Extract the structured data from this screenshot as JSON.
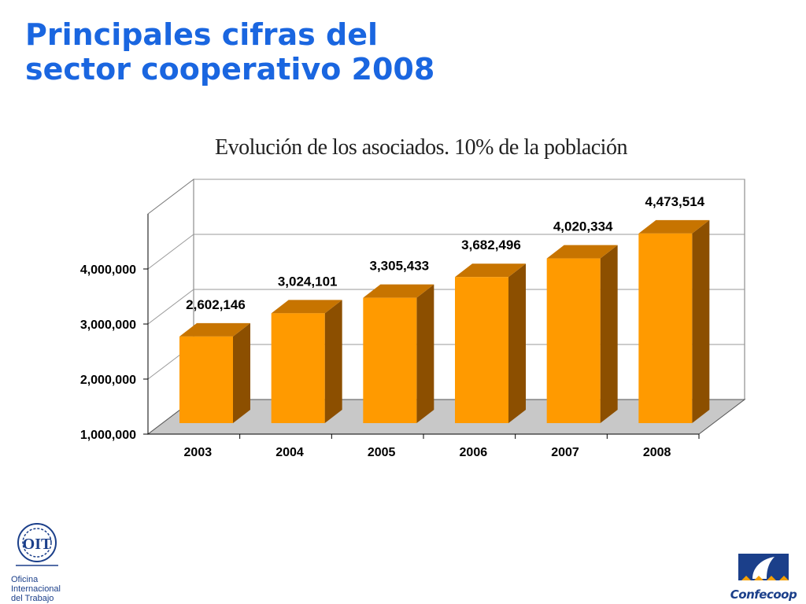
{
  "slide": {
    "title_line1": "Principales cifras del",
    "title_line2": "sector cooperativo 2008"
  },
  "logos": {
    "oit_mark": "OIT",
    "oit_text": [
      "Oficina",
      "Internacional",
      "del Trabajo"
    ],
    "confecoop_text": "Confecoop"
  },
  "colors": {
    "title": "#1a66e0",
    "bar_front": "#ff9a00",
    "bar_top": "#c77400",
    "bar_side": "#8c4f00",
    "floor": "#c8c8c8"
  },
  "chart_data": {
    "type": "bar",
    "title": "Evolución de los asociados. 10% de la población",
    "categories": [
      "2003",
      "2004",
      "2005",
      "2006",
      "2007",
      "2008"
    ],
    "values": [
      2602146,
      3024101,
      3305433,
      3682496,
      4020334,
      4473514
    ],
    "value_labels": [
      "2,602,146",
      "3,024,101",
      "3,305,433",
      "3,682,496",
      "4,020,334",
      "4,473,514"
    ],
    "y_ticks": [
      1000000,
      2000000,
      3000000,
      4000000
    ],
    "y_tick_labels": [
      "1,000,000",
      "2,000,000",
      "3,000,000",
      "4,000,000"
    ],
    "ylim": [
      1000000,
      5000000
    ],
    "grid": true,
    "style": "3d"
  }
}
